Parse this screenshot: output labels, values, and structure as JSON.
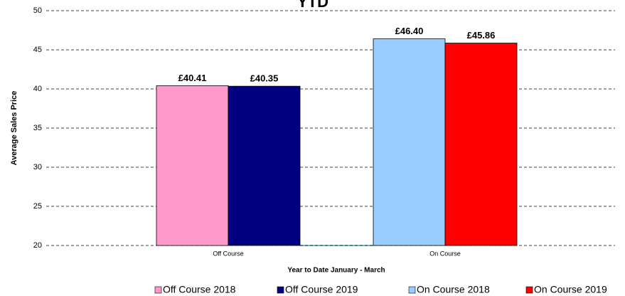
{
  "chart_data": {
    "type": "bar",
    "title": "YTD",
    "x_label": "Year to Date January - March",
    "y_label": "Average Sales Price",
    "categories": [
      "Off Course",
      "On Course"
    ],
    "series": [
      {
        "name": "Off Course 2018",
        "color": "#ff99cc",
        "values": [
          40.41,
          null
        ],
        "value_labels": [
          "£40.41",
          null
        ]
      },
      {
        "name": "Off Course 2019",
        "color": "#000080",
        "values": [
          40.35,
          null
        ],
        "value_labels": [
          "£40.35",
          null
        ]
      },
      {
        "name": "On Course 2018",
        "color": "#99ccff",
        "values": [
          null,
          46.4
        ],
        "value_labels": [
          null,
          "£46.40"
        ]
      },
      {
        "name": "On Course 2019",
        "color": "#ff0000",
        "values": [
          null,
          45.86
        ],
        "value_labels": [
          null,
          "£45.86"
        ]
      }
    ],
    "ylim": [
      20,
      50
    ],
    "yticks": [
      20,
      25,
      30,
      35,
      40,
      45,
      50
    ],
    "grid": true,
    "legend": "bottom"
  }
}
